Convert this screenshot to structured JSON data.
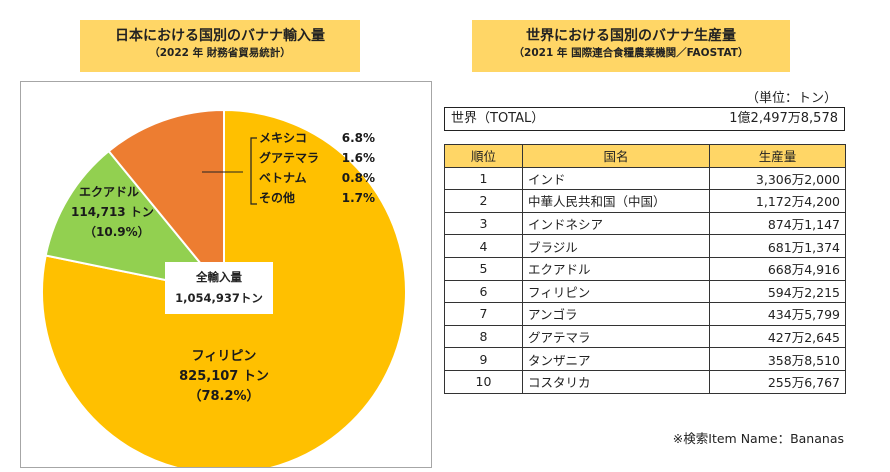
{
  "left_panel": {
    "title": "日本における国別のバナナ輸入量",
    "subtitle": "（2022 年 財務省貿易統計）",
    "total": {
      "label": "全輸入量",
      "value": "1,054,937トン"
    },
    "philippines": {
      "name": "フィリピン",
      "amount": "825,107 トン",
      "pct": "（78.2%）"
    },
    "ecuador": {
      "name": "エクアドル",
      "amount": "114,713 トン",
      "pct": "（10.9%）"
    },
    "others_breakdown": [
      {
        "name": "メキシコ",
        "pct": "6.8%"
      },
      {
        "name": "グアテマラ",
        "pct": "1.6%"
      },
      {
        "name": "ベトナム",
        "pct": "0.8%"
      },
      {
        "name": "その他",
        "pct": "1.7%"
      }
    ]
  },
  "chart_data": {
    "type": "pie",
    "title": "日本における国別のバナナ輸入量",
    "subtitle": "（2022 年 財務省貿易統計）",
    "unit": "トン",
    "slices": [
      {
        "label": "フィリピン",
        "value": 825107,
        "percent": 78.2,
        "color": "#ffc000"
      },
      {
        "label": "エクアドル",
        "value": 114713,
        "percent": 10.9,
        "color": "#92d050"
      },
      {
        "label": "その他",
        "value": 115117,
        "percent": 10.9,
        "color": "#ed7d31"
      }
    ],
    "total": 1054937
  },
  "right_panel": {
    "title": "世界における国別のバナナ生産量",
    "subtitle": "（2021 年 国際連合食糧農業機関／FAOSTAT）",
    "unit_note": "（単位：トン）",
    "world_label": "世界（TOTAL）",
    "world_value": "1億2,497万8,578",
    "table_headers": [
      "順位",
      "国名",
      "生産量"
    ],
    "rows": [
      {
        "rank": "1",
        "country": "インド",
        "value": "3,306万2,000"
      },
      {
        "rank": "2",
        "country": "中華人民共和国（中国）",
        "value": "1,172万4,200"
      },
      {
        "rank": "3",
        "country": "インドネシア",
        "value": "874万1,147"
      },
      {
        "rank": "4",
        "country": "ブラジル",
        "value": "681万1,374"
      },
      {
        "rank": "5",
        "country": "エクアドル",
        "value": "668万4,916"
      },
      {
        "rank": "6",
        "country": "フィリピン",
        "value": "594万2,215"
      },
      {
        "rank": "7",
        "country": "アンゴラ",
        "value": "434万5,799"
      },
      {
        "rank": "8",
        "country": "グアテマラ",
        "value": "427万2,645"
      },
      {
        "rank": "9",
        "country": "タンザニア",
        "value": "358万8,510"
      },
      {
        "rank": "10",
        "country": "コスタリカ",
        "value": "255万6,767"
      }
    ],
    "source_note": "※検索Item Name：Bananas"
  }
}
